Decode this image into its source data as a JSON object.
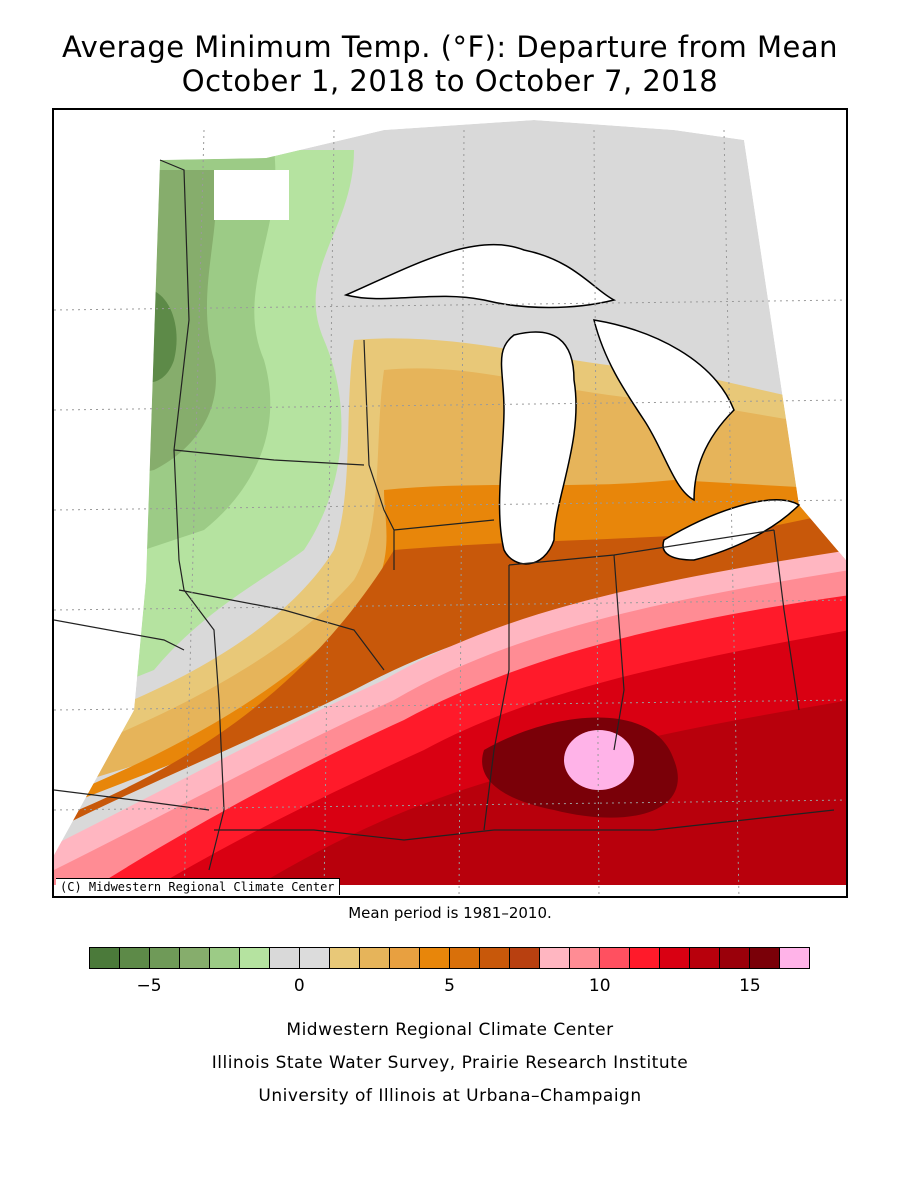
{
  "title_line1": "Average Minimum Temp. (°F): Departure from Mean",
  "title_line2": "October 1, 2018 to October 7, 2018",
  "copyright": "(C) Midwestern Regional Climate Center",
  "mean_period": "Mean period is 1981–2010.",
  "legend": {
    "colors": [
      "#4b7a3a",
      "#5d8a48",
      "#6f9a58",
      "#86ad6c",
      "#9ccb86",
      "#b5e3a0",
      "#d9d9d9",
      "#dcdcdc",
      "#e8c878",
      "#e6b45a",
      "#e8a040",
      "#e8860a",
      "#d9700a",
      "#c8580a",
      "#b84010",
      "#ffb6c1",
      "#ff8c94",
      "#ff5060",
      "#ff1a2a",
      "#d90012",
      "#b8000c",
      "#9a000a",
      "#7a0008",
      "#ffb3e8"
    ],
    "ticks": [
      {
        "label": "−5",
        "value": -5
      },
      {
        "label": "0",
        "value": 0
      },
      {
        "label": "5",
        "value": 5
      },
      {
        "label": "10",
        "value": 10
      },
      {
        "label": "15",
        "value": 15
      }
    ]
  },
  "credits": {
    "line1": "Midwestern Regional Climate Center",
    "line2": "Illinois State Water Survey, Prairie Research Institute",
    "line3": "University of Illinois at Urbana–Champaign"
  }
}
